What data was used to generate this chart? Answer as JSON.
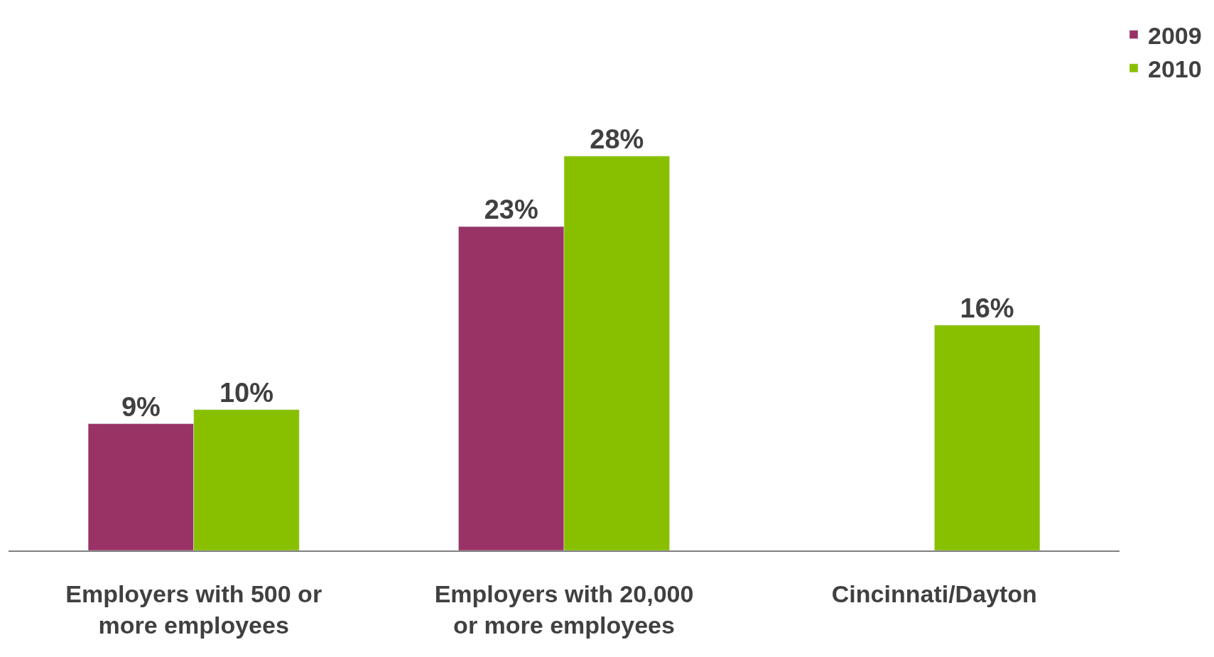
{
  "chart_data": {
    "type": "bar",
    "categories": [
      "Employers with 500 or more employees",
      "Employers with 20,000 or more employees",
      "Cincinnati/Dayton"
    ],
    "series": [
      {
        "name": "2009",
        "color": "#993366",
        "values": [
          9,
          23,
          null
        ],
        "value_labels": [
          "9%",
          "23%",
          null
        ]
      },
      {
        "name": "2010",
        "color": "#88c000",
        "values": [
          10,
          28,
          16
        ],
        "value_labels": [
          "10%",
          "28%",
          "16%"
        ]
      }
    ],
    "legend": "top right"
  }
}
